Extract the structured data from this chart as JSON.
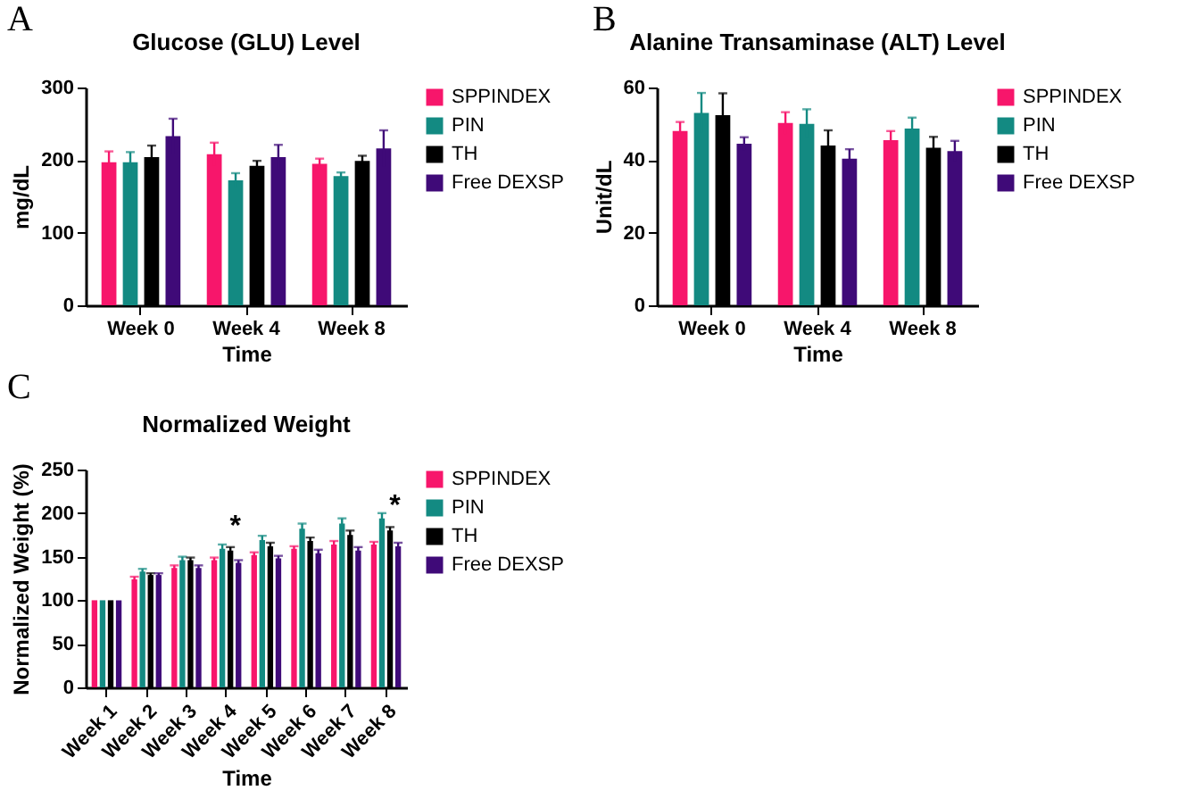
{
  "chart_data": [
    {
      "type": "bar",
      "title": "Glucose (GLU) Level",
      "xlabel": "Time",
      "ylabel": "mg/dL",
      "annotations": [
        "A"
      ],
      "categories": [
        "Week 0",
        "Week 4",
        "Week 8"
      ],
      "series": [
        {
          "name": "SPPINDEX",
          "color": "#f7166b",
          "values": [
            197,
            208,
            195
          ],
          "errors": [
            15,
            16,
            7
          ]
        },
        {
          "name": "PIN",
          "color": "#138a82",
          "values": [
            197,
            172,
            178
          ],
          "errors": [
            14,
            10,
            5
          ]
        },
        {
          "name": "TH",
          "color": "#000000",
          "values": [
            204,
            192,
            199
          ],
          "errors": [
            16,
            7,
            7
          ]
        },
        {
          "name": "Free DEXSP",
          "color": "#3f0a78",
          "values": [
            233,
            204,
            216
          ],
          "errors": [
            24,
            17,
            25
          ]
        }
      ],
      "ylim": [
        0,
        300
      ],
      "yticks": [
        0,
        100,
        200,
        300
      ],
      "grid": false,
      "legend": "right"
    },
    {
      "type": "bar",
      "title": "Alanine Transaminase (ALT) Level",
      "xlabel": "Time",
      "ylabel": "Unit/dL",
      "annotations": [
        "B"
      ],
      "categories": [
        "Week 0",
        "Week 4",
        "Week 8"
      ],
      "series": [
        {
          "name": "SPPINDEX",
          "color": "#f7166b",
          "values": [
            48,
            50.2,
            45.5
          ],
          "errors": [
            2.5,
            3,
            2.5
          ]
        },
        {
          "name": "PIN",
          "color": "#138a82",
          "values": [
            53,
            50,
            48.7
          ],
          "errors": [
            5.5,
            4,
            3
          ]
        },
        {
          "name": "TH",
          "color": "#000000",
          "values": [
            52.4,
            44,
            43.4
          ],
          "errors": [
            6,
            4.2,
            3
          ]
        },
        {
          "name": "Free DEXSP",
          "color": "#3f0a78",
          "values": [
            44.5,
            40.4,
            42.5
          ],
          "errors": [
            1.8,
            2.6,
            2.8
          ]
        }
      ],
      "ylim": [
        0,
        60
      ],
      "yticks": [
        0,
        20,
        40,
        60
      ],
      "grid": false,
      "legend": "right"
    },
    {
      "type": "bar",
      "title": "Normalized Weight",
      "xlabel": "Time",
      "ylabel": "Normalized Weight (%)",
      "annotations": [
        "C",
        {
          "text": "*",
          "x": "Week 4",
          "y": 157
        },
        {
          "text": "*",
          "x": "Week 8",
          "y": 180
        }
      ],
      "categories": [
        "Week 1",
        "Week 2",
        "Week 3",
        "Week 4",
        "Week 5",
        "Week 6",
        "Week 7",
        "Week 8"
      ],
      "series": [
        {
          "name": "SPPINDEX",
          "color": "#f7166b",
          "values": [
            100,
            124,
            137,
            146,
            152,
            159,
            164,
            164
          ],
          "errors": [
            null,
            3,
            3,
            3,
            3,
            3,
            4,
            3
          ]
        },
        {
          "name": "PIN",
          "color": "#138a82",
          "values": [
            100,
            133,
            146,
            159,
            169,
            182,
            188,
            194
          ],
          "errors": [
            null,
            3,
            4,
            5,
            5,
            6,
            6,
            6
          ]
        },
        {
          "name": "TH",
          "color": "#000000",
          "values": [
            100,
            129,
            146,
            157,
            162,
            168,
            175,
            180
          ],
          "errors": [
            null,
            2,
            3,
            4,
            4,
            4,
            5,
            4
          ]
        },
        {
          "name": "Free DEXSP",
          "color": "#3f0a78",
          "values": [
            100,
            129,
            137,
            143,
            148,
            154,
            157,
            162
          ],
          "errors": [
            null,
            2,
            3,
            3,
            3,
            4,
            4,
            4
          ]
        }
      ],
      "ylim": [
        0,
        250
      ],
      "yticks": [
        0,
        50,
        100,
        150,
        200,
        250
      ],
      "grid": false,
      "legend": "right"
    }
  ]
}
